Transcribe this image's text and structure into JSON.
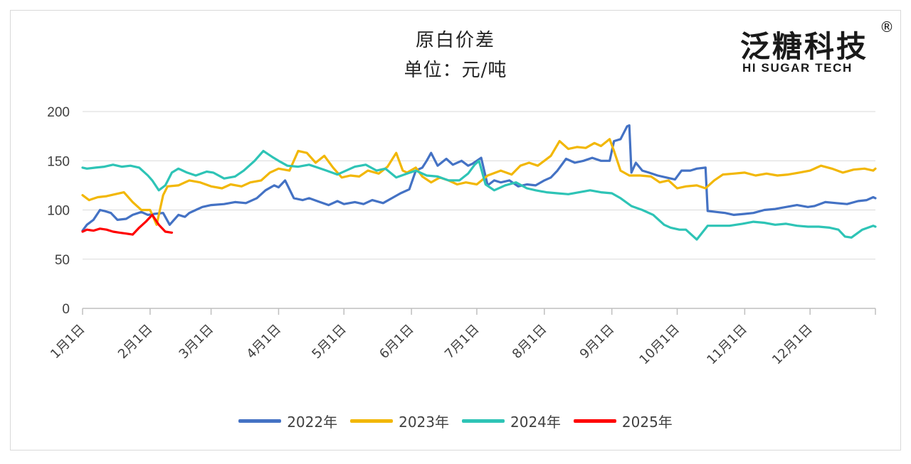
{
  "title": "原白价差",
  "subtitle": "单位：元/吨",
  "logo": {
    "cn": "泛糖科技",
    "en": "HI SUGAR TECH",
    "reg": "®"
  },
  "colors": {
    "2022年": "#4472C4",
    "2023年": "#F2B705",
    "2024年": "#2EC4B6",
    "2025年": "#FF0000"
  },
  "chart_data": {
    "type": "line",
    "title": "原白价差",
    "subtitle": "单位：元/吨",
    "x_domain": [
      "1月1日",
      "12月31日"
    ],
    "x_ticks": [
      "1月1日",
      "2月1日",
      "3月1日",
      "4月1日",
      "5月1日",
      "6月1日",
      "7月1日",
      "8月1日",
      "9月1日",
      "10月1日",
      "11月1日",
      "12月1日"
    ],
    "y_ticks": [
      0,
      50,
      100,
      150,
      200
    ],
    "ylim": [
      0,
      200
    ],
    "grid": "horizontal",
    "legend_position": "bottom",
    "series": [
      {
        "name": "2022年",
        "color": "#4472C4",
        "x": [
          "1月1日",
          "1月3日",
          "1月6日",
          "1月9日",
          "1月11日",
          "1月14日",
          "1月17日",
          "1月21日",
          "1月24日",
          "1月28日",
          "1月31日",
          "2月3日",
          "2月7日",
          "2月10日",
          "2月14日",
          "2月17日",
          "2月19日",
          "2月22日",
          "2月25日",
          "3月1日",
          "3月7日",
          "3月12日",
          "3月17日",
          "3月22日",
          "3月26日",
          "3月30日",
          "4月1日",
          "4月4日",
          "4月8日",
          "4月12日",
          "4月15日",
          "4月20日",
          "4月24日",
          "4月28日",
          "5月1日",
          "5月6日",
          "5月10日",
          "5月14日",
          "5月19日",
          "5月23日",
          "5月27日",
          "5月31日",
          "6月3日",
          "6月6日",
          "6月8日",
          "6月10日",
          "6月13日",
          "6月17日",
          "6月20日",
          "6月24日",
          "6月27日",
          "6月29日",
          "7月1日",
          "7月3日",
          "7月6日",
          "7月9日",
          "7月12日",
          "7月16日",
          "7月20日",
          "7月24日",
          "7月28日",
          "8月1日",
          "8月4日",
          "8月7日",
          "8月11日",
          "8月15日",
          "8月19日",
          "8月23日",
          "8月27日",
          "8月31日",
          "9月2日",
          "9月5日",
          "9月8日",
          "9月9日",
          "9月10日",
          "9月12日",
          "9月15日",
          "9月18日",
          "9月22日",
          "9月26日",
          "9月30日",
          "10月3日",
          "10月7日",
          "10月10日",
          "10月14日",
          "10月15日",
          "10月19日",
          "10月23日",
          "10月27日",
          "11月1日",
          "11月5日",
          "11月10日",
          "11月15日",
          "11月20日",
          "11月25日",
          "11月30日",
          "12月3日",
          "12月8日",
          "12月13日",
          "12月18日",
          "12月23日",
          "12月27日",
          "12月30日",
          "12月31日"
        ],
        "values": [
          79,
          85,
          90,
          100,
          99,
          97,
          90,
          91,
          95,
          98,
          95,
          96,
          97,
          85,
          95,
          93,
          97,
          100,
          103,
          105,
          106,
          108,
          107,
          112,
          120,
          125,
          123,
          130,
          112,
          110,
          112,
          108,
          105,
          109,
          106,
          108,
          106,
          110,
          107,
          112,
          117,
          121,
          140,
          143,
          150,
          158,
          145,
          152,
          146,
          150,
          145,
          147,
          150,
          153,
          125,
          130,
          128,
          130,
          124,
          126,
          125,
          130,
          133,
          140,
          152,
          148,
          150,
          153,
          150,
          150,
          170,
          172,
          185,
          186,
          138,
          148,
          140,
          138,
          135,
          133,
          131,
          140,
          140,
          142,
          143,
          99,
          98,
          97,
          95,
          96,
          97,
          100,
          101,
          103,
          105,
          103,
          104,
          108,
          107,
          106,
          109,
          110,
          113,
          112
        ]
      },
      {
        "name": "2023年",
        "color": "#F2B705",
        "x": [
          "1月1日",
          "1月4日",
          "1月8日",
          "1月12日",
          "1月16日",
          "1月20日",
          "1月24日",
          "1月28日",
          "2月1日",
          "2月4日",
          "2月7日",
          "2月9日",
          "2月14日",
          "2月19日",
          "2月24日",
          "3月1日",
          "3月6日",
          "3月10日",
          "3月15日",
          "3月19日",
          "3月24日",
          "3月28日",
          "4月1日",
          "4月6日",
          "4月10日",
          "4月14日",
          "4月18日",
          "4月22日",
          "4月26日",
          "4月30日",
          "5月4日",
          "5月8日",
          "5月12日",
          "5月17日",
          "5月21日",
          "5月25日",
          "5月28日",
          "5月30日",
          "6月3日",
          "6月6日",
          "6月10日",
          "6月14日",
          "6月18日",
          "6月22日",
          "6月26日",
          "7月1日",
          "7月6日",
          "7月12日",
          "7月17日",
          "7月21日",
          "7月25日",
          "7月29日",
          "8月1日",
          "8月4日",
          "8月8日",
          "8月12日",
          "8月16日",
          "8月20日",
          "8月24日",
          "8月27日",
          "8月31日",
          "9月2日",
          "9月5日",
          "9月9日",
          "9月14日",
          "9月19日",
          "9月23日",
          "9月27日",
          "10月1日",
          "10月5日",
          "10月10日",
          "10月14日",
          "10月18日",
          "10月22日",
          "10月27日",
          "11月1日",
          "11月6日",
          "11月11日",
          "11月16日",
          "11月21日",
          "11月26日",
          "12月1日",
          "12月6日",
          "12月11日",
          "12月16日",
          "12月21日",
          "12月26日",
          "12月30日",
          "12月31日"
        ],
        "values": [
          115,
          110,
          113,
          114,
          116,
          118,
          108,
          100,
          100,
          85,
          115,
          124,
          125,
          130,
          128,
          124,
          122,
          126,
          124,
          128,
          130,
          138,
          142,
          140,
          160,
          158,
          148,
          155,
          143,
          133,
          135,
          134,
          140,
          137,
          144,
          158,
          140,
          138,
          143,
          134,
          128,
          133,
          130,
          126,
          128,
          126,
          135,
          140,
          136,
          145,
          148,
          145,
          150,
          155,
          170,
          162,
          164,
          163,
          168,
          165,
          172,
          160,
          140,
          135,
          135,
          134,
          128,
          130,
          122,
          124,
          125,
          122,
          130,
          136,
          137,
          138,
          135,
          137,
          135,
          136,
          138,
          140,
          145,
          142,
          138,
          141,
          142,
          140,
          142
        ]
      },
      {
        "name": "2024年",
        "color": "#2EC4B6",
        "x": [
          "1月1日",
          "1月3日",
          "1月7日",
          "1月11日",
          "1月15日",
          "1月19日",
          "1月23日",
          "1月27日",
          "1月31日",
          "2月2日",
          "2月5日",
          "2月8日",
          "2月11日",
          "2月14日",
          "2月18日",
          "2月22日",
          "2月27日",
          "3月2日",
          "3月7日",
          "3月12日",
          "3月16日",
          "3月21日",
          "3月25日",
          "3月29日",
          "4月1日",
          "4月5日",
          "4月10日",
          "4月15日",
          "4月19日",
          "4月23日",
          "4月28日",
          "5月2日",
          "5月6日",
          "5月11日",
          "5月16日",
          "5月20日",
          "5月25日",
          "5月30日",
          "6月3日",
          "6月8日",
          "6月13日",
          "6月18日",
          "6月23日",
          "6月27日",
          "6月30日",
          "7月2日",
          "7月5日",
          "7月9日",
          "7月14日",
          "7月19日",
          "7月24日",
          "7月28日",
          "8月2日",
          "8月7日",
          "8月12日",
          "8月17日",
          "8月22日",
          "8月27日",
          "9月1日",
          "9月5日",
          "9月10日",
          "9月15日",
          "9月20日",
          "9月25日",
          "9月28日",
          "10月2日",
          "10月5日",
          "10月10日",
          "10月15日",
          "10月20日",
          "10月25日",
          "10月31日",
          "11月5日",
          "11月10日",
          "11月15日",
          "11月20日",
          "11月25日",
          "11月30日",
          "12月5日",
          "12月10日",
          "12月14日",
          "12月17日",
          "12月20日",
          "12月25日",
          "12月30日",
          "12月31日"
        ],
        "values": [
          143,
          142,
          143,
          144,
          146,
          144,
          145,
          143,
          135,
          130,
          120,
          125,
          138,
          142,
          138,
          135,
          139,
          138,
          132,
          134,
          140,
          150,
          160,
          154,
          150,
          145,
          144,
          146,
          143,
          140,
          136,
          140,
          144,
          146,
          140,
          142,
          133,
          137,
          140,
          135,
          134,
          130,
          130,
          137,
          146,
          150,
          126,
          120,
          125,
          128,
          122,
          120,
          118,
          117,
          116,
          118,
          120,
          118,
          117,
          112,
          104,
          100,
          95,
          85,
          82,
          80,
          80,
          70,
          84,
          84,
          84,
          86,
          88,
          87,
          85,
          86,
          84,
          83,
          83,
          82,
          80,
          73,
          72,
          80,
          84,
          83
        ]
      },
      {
        "name": "2025年",
        "color": "#FF0000",
        "x": [
          "1月1日",
          "1月3日",
          "1月6日",
          "1月9日",
          "1月12日",
          "1月15日",
          "1月18日",
          "1月21日",
          "1月24日",
          "1月27日",
          "1月30日",
          "2月2日",
          "2月5日",
          "2月8日",
          "2月11日"
        ],
        "values": [
          78,
          80,
          79,
          81,
          80,
          78,
          77,
          76,
          75,
          82,
          88,
          95,
          85,
          78,
          77
        ]
      }
    ]
  }
}
